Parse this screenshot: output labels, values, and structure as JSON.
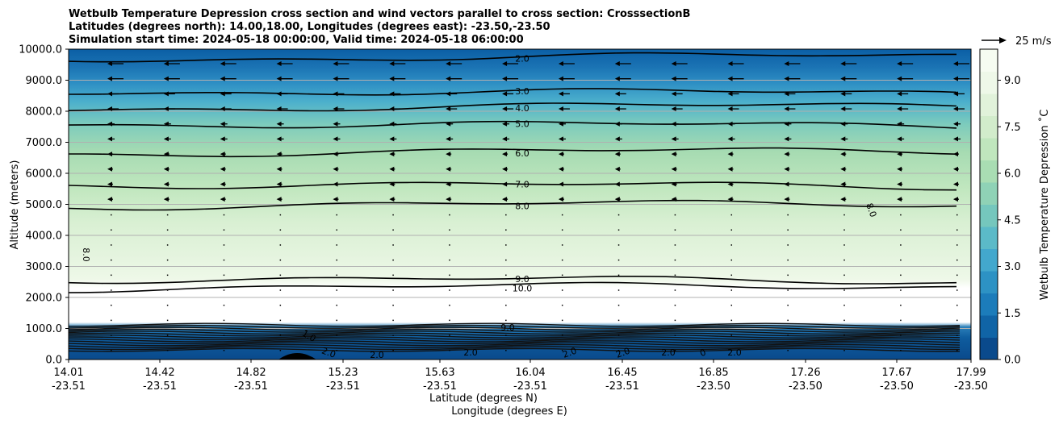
{
  "chart_data": {
    "type": "heatmap",
    "title": [
      "Wetbulb Temperature Depression cross section and wind vectors parallel to cross section: CrosssectionB",
      "Latitudes (degrees north): 14.00,18.00, Longitudes (degrees east): -23.50,-23.50",
      "Simulation start time: 2024-05-18 00:00:00, Valid time: 2024-05-18 06:00:00"
    ],
    "xlabel": "Latitude (degrees N)",
    "xlabel2": "Longitude (degrees E)",
    "ylabel": "Altitude (meters)",
    "ylim": [
      0,
      10000
    ],
    "grid": "horizontal",
    "y_ticks": [
      "0.0",
      "1000.0",
      "2000.0",
      "3000.0",
      "4000.0",
      "5000.0",
      "6000.0",
      "7000.0",
      "8000.0",
      "9000.0",
      "10000.0"
    ],
    "x_ticks": [
      {
        "lat": "14.01",
        "lon": "-23.51"
      },
      {
        "lat": "14.42",
        "lon": "-23.51"
      },
      {
        "lat": "14.82",
        "lon": "-23.51"
      },
      {
        "lat": "15.23",
        "lon": "-23.51"
      },
      {
        "lat": "15.63",
        "lon": "-23.51"
      },
      {
        "lat": "16.04",
        "lon": "-23.51"
      },
      {
        "lat": "16.45",
        "lon": "-23.51"
      },
      {
        "lat": "16.85",
        "lon": "-23.50"
      },
      {
        "lat": "17.26",
        "lon": "-23.50"
      },
      {
        "lat": "17.67",
        "lon": "-23.50"
      },
      {
        "lat": "17.99",
        "lon": "-23.50"
      }
    ],
    "colorbar": {
      "label": "Wetbulb Temperature Depression ˚C",
      "range": [
        0,
        10
      ],
      "ticks": [
        "0.0",
        "1.5",
        "3.0",
        "4.5",
        "6.0",
        "7.5",
        "9.0"
      ],
      "colors": [
        "#0a4a8c",
        "#1064a6",
        "#1c7cba",
        "#2d92c4",
        "#43a8cd",
        "#5bbac8",
        "#75c7bd",
        "#8fd2b6",
        "#a9ddb3",
        "#c0e6bd",
        "#d2eccb",
        "#e1f2da",
        "#eef8e8",
        "#f6fcf1"
      ]
    },
    "contours": [
      {
        "level": "2.0",
        "altitude": 9700
      },
      {
        "level": "3.0",
        "altitude": 8650
      },
      {
        "level": "4.0",
        "altitude": 8100
      },
      {
        "level": "5.0",
        "altitude": 7600
      },
      {
        "level": "6.0",
        "altitude": 6650
      },
      {
        "level": "7.0",
        "altitude": 5650
      },
      {
        "level": "8.0",
        "altitude": 4950
      },
      {
        "level": "9.0",
        "altitude": 2600
      },
      {
        "level": "10.0",
        "altitude": 2300
      }
    ],
    "extra_labels": [
      "8.0",
      "8.0",
      "1.0",
      "2.0",
      "2.0",
      "2.0",
      "2.0",
      "2.0",
      "2.0",
      "2.0",
      "0",
      "9.0"
    ],
    "wind_key": "25 m/s"
  }
}
